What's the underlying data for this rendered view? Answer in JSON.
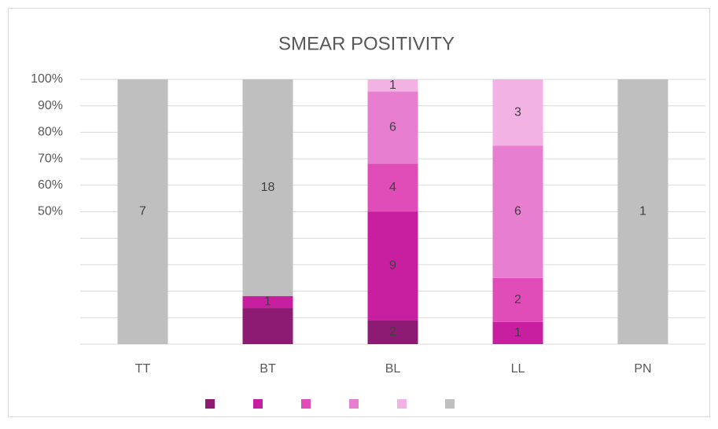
{
  "chart_data": {
    "type": "stacked_percent_bar",
    "title": "SMEAR POSITIVITY",
    "categories": [
      "TT",
      "BT",
      "BL",
      "LL",
      "PN"
    ],
    "series": [
      {
        "color": "#8e1b73",
        "values": [
          0,
          3,
          2,
          0,
          0
        ],
        "value_labels": [
          null,
          null,
          "2",
          null,
          null
        ]
      },
      {
        "color": "#c81fa0",
        "values": [
          0,
          1,
          9,
          1,
          0
        ]
      },
      {
        "color": "#e04db8",
        "values": [
          0,
          0,
          4,
          2,
          0
        ]
      },
      {
        "color": "#e87ed0",
        "values": [
          0,
          0,
          6,
          6,
          0
        ]
      },
      {
        "color": "#f2b2e4",
        "values": [
          0,
          0,
          1,
          3,
          0
        ]
      },
      {
        "color": "#bfbfbf",
        "values": [
          7,
          18,
          0,
          0,
          1
        ]
      }
    ],
    "ylim": [
      0,
      100
    ],
    "yticks": [
      0,
      10,
      20,
      30,
      40,
      50,
      60,
      70,
      80,
      90,
      100
    ],
    "ytick_labels": [
      {
        "value": 100,
        "label": "100%"
      },
      {
        "value": 90,
        "label": "90%"
      },
      {
        "value": 80,
        "label": "80%"
      },
      {
        "value": 70,
        "label": "70%"
      },
      {
        "value": 60,
        "label": "60%"
      },
      {
        "value": 50,
        "label": "50%"
      }
    ],
    "grid": true,
    "legend": "bottom"
  }
}
